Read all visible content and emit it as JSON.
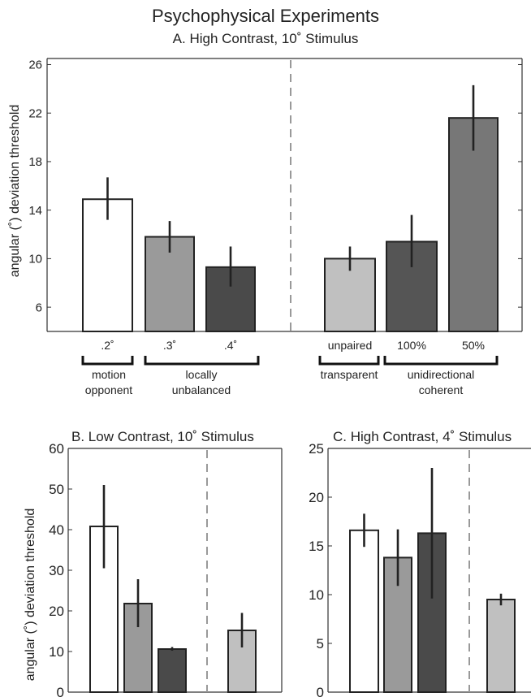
{
  "figure": {
    "title": "Psychophysical Experiments"
  },
  "chart_data": [
    {
      "id": "A",
      "type": "bar",
      "title": "A. High Contrast, 10˚ Stimulus",
      "ylabel": "angular (˚) deviation threshold",
      "ylim": [
        4,
        26.5
      ],
      "yticks": [
        6,
        10,
        14,
        18,
        22,
        26
      ],
      "tick_labels": [
        ".2˚",
        ".3˚",
        ".4˚",
        "unpaired",
        "100%",
        "50%"
      ],
      "values": [
        14.9,
        11.8,
        9.3,
        10.0,
        11.4,
        21.6
      ],
      "error_low": [
        13.2,
        10.5,
        7.7,
        9.0,
        9.3,
        18.9
      ],
      "error_high": [
        16.7,
        13.1,
        11.0,
        11.0,
        13.6,
        24.3
      ],
      "colors": [
        "#ffffff",
        "#9a9a9a",
        "#4a4a4a",
        "#c0c0c0",
        "#555555",
        "#777777"
      ],
      "group_labels": [
        {
          "text": [
            "motion",
            "opponent"
          ]
        },
        {
          "text": [
            "locally",
            "unbalanced"
          ]
        },
        {
          "text": [
            "transparent"
          ]
        },
        {
          "text": [
            "unidirectional",
            "coherent"
          ]
        }
      ],
      "divider": "dashed between bar 3 and bar 4"
    },
    {
      "id": "B",
      "type": "bar",
      "title": "B. Low Contrast, 10˚ Stimulus",
      "ylabel": "angular (˚) deviation threshold",
      "ylim": [
        0,
        60
      ],
      "yticks": [
        0,
        10,
        20,
        30,
        40,
        50,
        60
      ],
      "values": [
        40.8,
        21.8,
        10.6,
        15.2
      ],
      "error_low": [
        30.5,
        16.0,
        10.2,
        11.0
      ],
      "error_high": [
        51.0,
        27.8,
        11.1,
        19.5
      ],
      "colors": [
        "#ffffff",
        "#9a9a9a",
        "#4a4a4a",
        "#c0c0c0"
      ],
      "divider": "dashed between bar 3 and bar 4"
    },
    {
      "id": "C",
      "type": "bar",
      "title": "C. High Contrast, 4˚ Stimulus",
      "ylim": [
        0,
        25
      ],
      "yticks": [
        0,
        5,
        10,
        15,
        20,
        25
      ],
      "values": [
        16.6,
        13.8,
        16.3,
        9.5
      ],
      "error_low": [
        14.9,
        10.9,
        9.6,
        8.9
      ],
      "error_high": [
        18.3,
        16.7,
        23.0,
        10.1
      ],
      "colors": [
        "#ffffff",
        "#9a9a9a",
        "#4a4a4a",
        "#c0c0c0"
      ],
      "divider": "dashed between bar 3 and bar 4"
    }
  ]
}
